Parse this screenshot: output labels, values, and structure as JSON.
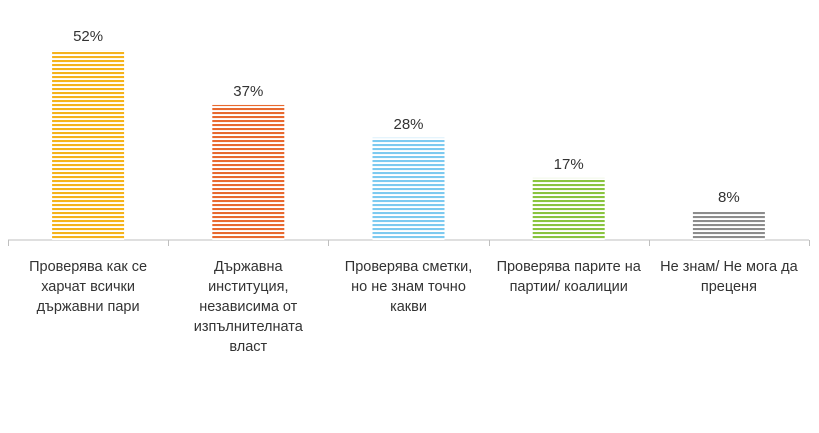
{
  "chart_data": {
    "type": "bar",
    "title": "",
    "xlabel": "",
    "ylabel": "",
    "ylim": [
      0,
      60
    ],
    "grid": false,
    "legend": "none",
    "categories": [
      "Проверява как се харчат всички държавни пари",
      "Държавна институция, независима от изпълнителната власт",
      "Проверява сметки, но не знам точно какви",
      "Проверява парите на партии/ коалиции",
      "Не знам/ Не мога да преценя"
    ],
    "category_label_lines": [
      [
        "Проверява как се",
        "харчат всички",
        "държавни пари"
      ],
      [
        "Държавна",
        "институция,",
        "независима от",
        "изпълнителната",
        "власт"
      ],
      [
        "Проверява сметки,",
        "но не знам точно",
        "какви"
      ],
      [
        "Проверява парите на",
        "партии/ коалиции"
      ],
      [
        "Не знам/ Не мога да",
        "преценя"
      ]
    ],
    "values": [
      52,
      37,
      28,
      17,
      8
    ],
    "data_labels": [
      "52%",
      "37%",
      "28%",
      "17%",
      "8%"
    ],
    "colors": [
      "#f5b31b",
      "#e8692f",
      "#7dcaf0",
      "#8ac43f",
      "#8c8c8c"
    ],
    "bar_pattern": "horizontal-stripes",
    "axis_color": "#bfbfbf",
    "label_color": "#333333"
  }
}
